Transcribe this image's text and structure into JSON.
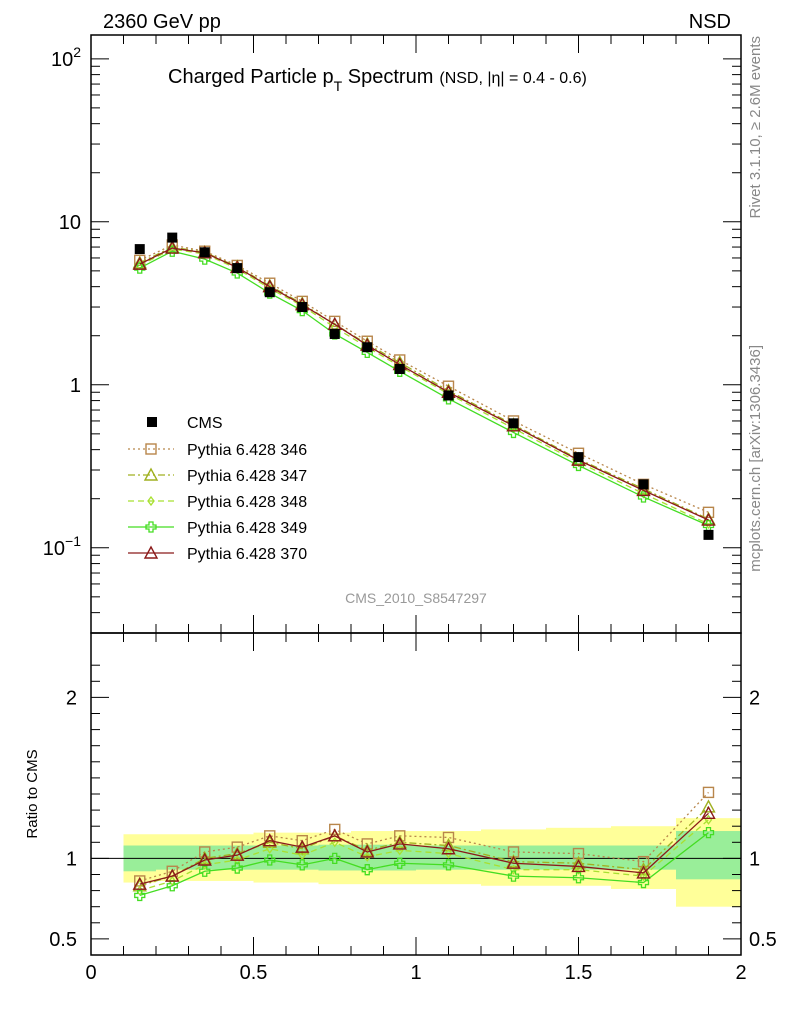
{
  "header": {
    "energy_label": "2360 GeV pp",
    "process_label": "NSD"
  },
  "side": {
    "rivet_label": "Rivet 3.1.10, ≥ 2.6M events",
    "site_label": "mcplots.cern.ch [arXiv:1306.3436]"
  },
  "analysis_id": "CMS_2010_S8547297",
  "colors": {
    "CMS": "#000000",
    "p346": "#b8864b",
    "p347": "#a0b020",
    "p348": "#a8e030",
    "p349": "#44dd22",
    "p370": "#8b1a1a",
    "band_inner": "#99ee99",
    "band_outer": "#ffff99"
  },
  "chart_data": [
    {
      "type": "line",
      "title": "Charged Particle p_T Spectrum",
      "title_parts": {
        "main": "Charged Particle p",
        "sub": "T",
        "rest": " Spectrum",
        "note": "(NSD, |η| = 0.4 - 0.6)"
      },
      "xlabel": "",
      "ylabel": "",
      "yscale": "log",
      "xlim": [
        0,
        2
      ],
      "ylim": [
        0.03,
        140
      ],
      "y_ticks": [
        {
          "v": 0.1,
          "base": "10",
          "exp": "−1"
        },
        {
          "v": 1,
          "base": "1",
          "exp": ""
        },
        {
          "v": 10,
          "base": "10",
          "exp": ""
        },
        {
          "v": 100,
          "base": "10",
          "exp": "2"
        }
      ],
      "x": [
        0.15,
        0.25,
        0.35,
        0.45,
        0.55,
        0.65,
        0.75,
        0.85,
        0.95,
        1.1,
        1.3,
        1.5,
        1.7,
        1.9
      ],
      "cms": {
        "name": "CMS",
        "values": [
          6.8,
          8.0,
          6.5,
          5.2,
          3.7,
          3.0,
          2.05,
          1.7,
          1.25,
          0.86,
          0.58,
          0.36,
          0.245,
          0.12
        ]
      },
      "series": [
        {
          "name": "Pythia 6.428 346",
          "key": "p346",
          "marker": "square",
          "dash": "2,3",
          "values": [
            5.8,
            7.2,
            6.6,
            5.4,
            4.2,
            3.25,
            2.45,
            1.85,
            1.42,
            0.98,
            0.6,
            0.38,
            0.245,
            0.165
          ]
        },
        {
          "name": "Pythia 6.428 347",
          "key": "p347",
          "marker": "triangle",
          "dash": "7,3,2,3",
          "values": [
            5.6,
            7.0,
            6.5,
            5.3,
            4.05,
            3.15,
            2.35,
            1.78,
            1.37,
            0.92,
            0.57,
            0.35,
            0.23,
            0.15
          ]
        },
        {
          "name": "Pythia 6.428 348",
          "key": "p348",
          "marker": "diamond",
          "dash": "6,4",
          "values": [
            5.4,
            6.8,
            6.35,
            5.15,
            3.9,
            3.05,
            2.25,
            1.7,
            1.3,
            0.88,
            0.54,
            0.335,
            0.215,
            0.14
          ]
        },
        {
          "name": "Pythia 6.428 349",
          "key": "p349",
          "marker": "plus",
          "dash": "",
          "values": [
            5.2,
            6.6,
            5.9,
            4.85,
            3.65,
            2.85,
            2.05,
            1.58,
            1.21,
            0.82,
            0.51,
            0.32,
            0.205,
            0.137
          ]
        },
        {
          "name": "Pythia 6.428 370",
          "key": "p370",
          "marker": "triangle",
          "dash": "",
          "values": [
            5.5,
            6.9,
            6.45,
            5.25,
            4.0,
            3.1,
            2.35,
            1.75,
            1.33,
            0.9,
            0.56,
            0.345,
            0.225,
            0.148
          ]
        }
      ]
    },
    {
      "type": "line",
      "title": "",
      "xlabel": "",
      "ylabel": "Ratio to CMS",
      "ylim": [
        0.4,
        2.4
      ],
      "xlim": [
        0,
        2
      ],
      "x_ticks": [
        0,
        0.5,
        1,
        1.5,
        2
      ],
      "x_tick_labels": [
        "0",
        "0.5",
        "1",
        "1.5",
        "2"
      ],
      "y_ticks": [
        0.5,
        1,
        2
      ],
      "y_tick_labels": [
        "0.5",
        "1",
        "2"
      ],
      "band": {
        "edges": [
          0.1,
          0.2,
          0.3,
          0.4,
          0.5,
          0.6,
          0.7,
          0.8,
          0.9,
          1.0,
          1.2,
          1.4,
          1.6,
          1.8,
          2.0
        ],
        "inner_lo": [
          0.92,
          0.93,
          0.93,
          0.93,
          0.93,
          0.93,
          0.925,
          0.925,
          0.925,
          0.93,
          0.93,
          0.93,
          0.93,
          0.87
        ],
        "inner_hi": [
          1.08,
          1.08,
          1.08,
          1.08,
          1.08,
          1.08,
          1.085,
          1.085,
          1.085,
          1.08,
          1.08,
          1.08,
          1.08,
          1.17
        ],
        "outer_lo": [
          0.85,
          0.86,
          0.86,
          0.86,
          0.85,
          0.85,
          0.84,
          0.84,
          0.84,
          0.84,
          0.83,
          0.83,
          0.81,
          0.7
        ],
        "outer_hi": [
          1.15,
          1.15,
          1.15,
          1.15,
          1.16,
          1.16,
          1.16,
          1.17,
          1.17,
          1.17,
          1.18,
          1.19,
          1.2,
          1.25
        ]
      },
      "x": [
        0.15,
        0.25,
        0.35,
        0.45,
        0.55,
        0.65,
        0.75,
        0.85,
        0.95,
        1.1,
        1.3,
        1.5,
        1.7,
        1.9
      ],
      "series": [
        {
          "name": "Pythia 6.428 346",
          "key": "p346",
          "marker": "square",
          "dash": "2,3",
          "values": [
            0.86,
            0.92,
            1.04,
            1.07,
            1.14,
            1.11,
            1.18,
            1.09,
            1.14,
            1.13,
            1.04,
            1.03,
            0.98,
            1.41
          ]
        },
        {
          "name": "Pythia 6.428 347",
          "key": "p347",
          "marker": "triangle",
          "dash": "7,3,2,3",
          "values": [
            0.83,
            0.89,
            1.0,
            1.03,
            1.1,
            1.06,
            1.14,
            1.05,
            1.1,
            1.08,
            0.98,
            0.97,
            0.93,
            1.32
          ]
        },
        {
          "name": "Pythia 6.428 348",
          "key": "p348",
          "marker": "diamond",
          "dash": "6,4",
          "values": [
            0.8,
            0.86,
            0.96,
            0.99,
            1.06,
            1.02,
            1.1,
            1.01,
            1.05,
            1.03,
            0.93,
            0.93,
            0.89,
            1.24
          ]
        },
        {
          "name": "Pythia 6.428 349",
          "key": "p349",
          "marker": "plus",
          "dash": "",
          "values": [
            0.77,
            0.83,
            0.92,
            0.94,
            0.99,
            0.96,
            1.0,
            0.93,
            0.97,
            0.96,
            0.89,
            0.88,
            0.85,
            1.16
          ]
        },
        {
          "name": "Pythia 6.428 370",
          "key": "p370",
          "marker": "triangle",
          "dash": "",
          "values": [
            0.84,
            0.89,
            0.99,
            1.02,
            1.11,
            1.07,
            1.14,
            1.04,
            1.09,
            1.06,
            0.97,
            0.95,
            0.91,
            1.28
          ]
        }
      ]
    }
  ]
}
